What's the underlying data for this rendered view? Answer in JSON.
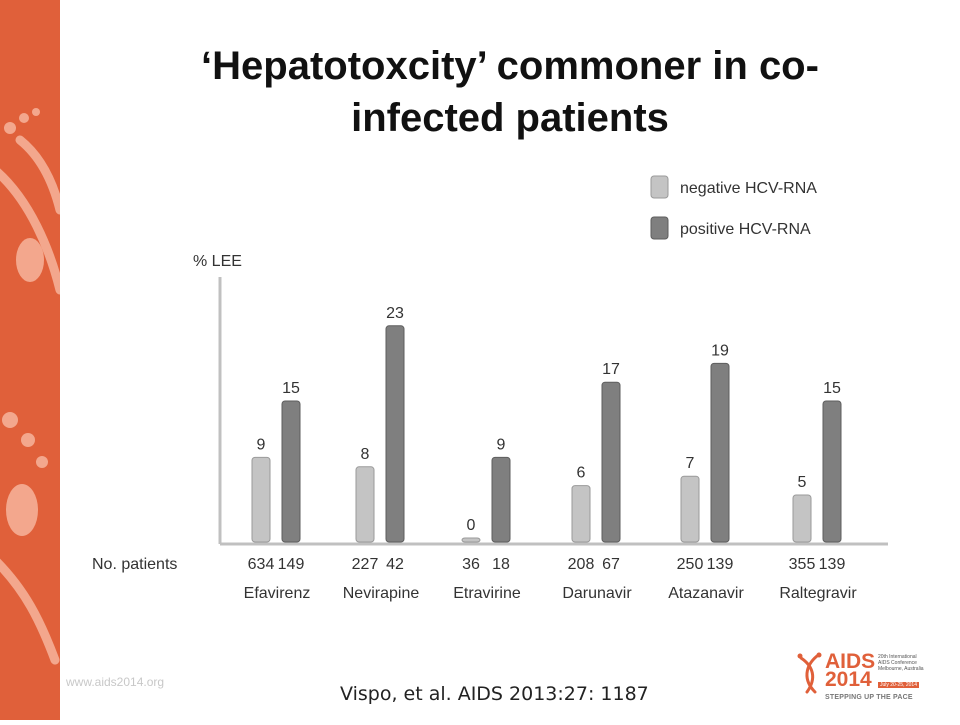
{
  "slide": {
    "title_line1": "‘Hepatotoxcity’ commoner in co-",
    "title_line2": "infected patients",
    "footer_url": "www.aids2014.org",
    "citation": "Vispo, et al. AIDS 2013:27: 1187"
  },
  "logo": {
    "word": "AIDS",
    "year": "2014",
    "tagline": "STEPPING UP THE PACE",
    "small_line1": "20th International",
    "small_line2": "AIDS Conference",
    "small_line3": "Melbourne, Australia",
    "date": "July 20-25, 2014"
  },
  "colors": {
    "accent": "#e0603a",
    "negative": "#c4c4c4",
    "positive": "#7f7f7f"
  },
  "chart_data": {
    "type": "bar",
    "title": "",
    "xlabel": "",
    "ylabel": "% LEE",
    "ylim": [
      0,
      25
    ],
    "grid": false,
    "legend_position": "top-right",
    "row_label": "No. patients",
    "categories": [
      "Efavirenz",
      "Nevirapine",
      "Etravirine",
      "Darunavir",
      "Atazanavir",
      "Raltegravir"
    ],
    "series": [
      {
        "name": "negative HCV-RNA",
        "values": [
          9,
          8,
          0,
          6,
          7,
          5
        ],
        "patients": [
          "634",
          "227",
          "36",
          "208",
          "250",
          "355"
        ]
      },
      {
        "name": "positive HCV-RNA",
        "values": [
          15,
          23,
          9,
          17,
          19,
          15
        ],
        "patients": [
          "149",
          "42",
          "18",
          "67",
          "139",
          "139"
        ]
      }
    ]
  }
}
